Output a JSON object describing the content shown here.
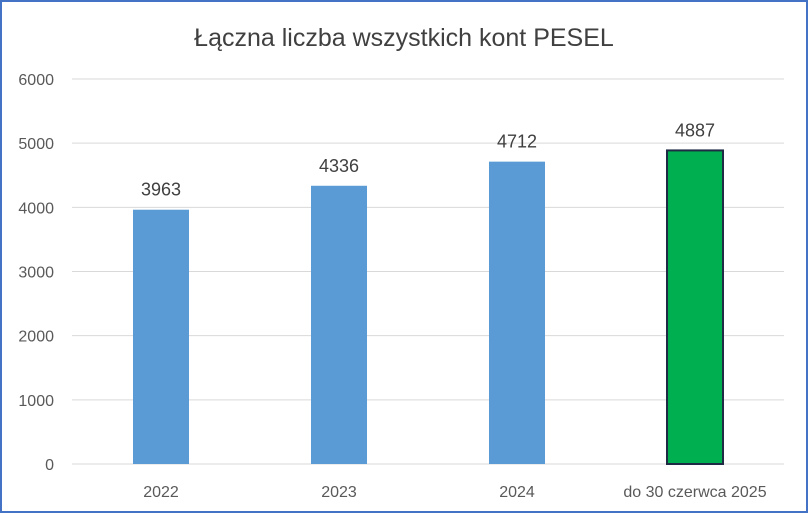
{
  "chart_data": {
    "type": "bar",
    "title": "Łączna liczba wszystkich kont PESEL",
    "xlabel": "",
    "ylabel": "",
    "categories": [
      "2022",
      "2023",
      "2024",
      "do 30 czerwca 2025"
    ],
    "values": [
      3963,
      4336,
      4712,
      4887
    ],
    "data_labels": [
      "3963",
      "4336",
      "4712",
      "4887"
    ],
    "y_ticks": [
      "0",
      "1000",
      "2000",
      "3000",
      "4000",
      "5000",
      "6000"
    ],
    "ylim": [
      0,
      6000
    ],
    "grid": true,
    "legend": "none",
    "colors": {
      "bar": "#5b9bd5",
      "highlight_bar": "#00b050",
      "highlight_border": "#1f2a44",
      "grid": "#d9d9d9",
      "frame": "#4472c4"
    }
  }
}
